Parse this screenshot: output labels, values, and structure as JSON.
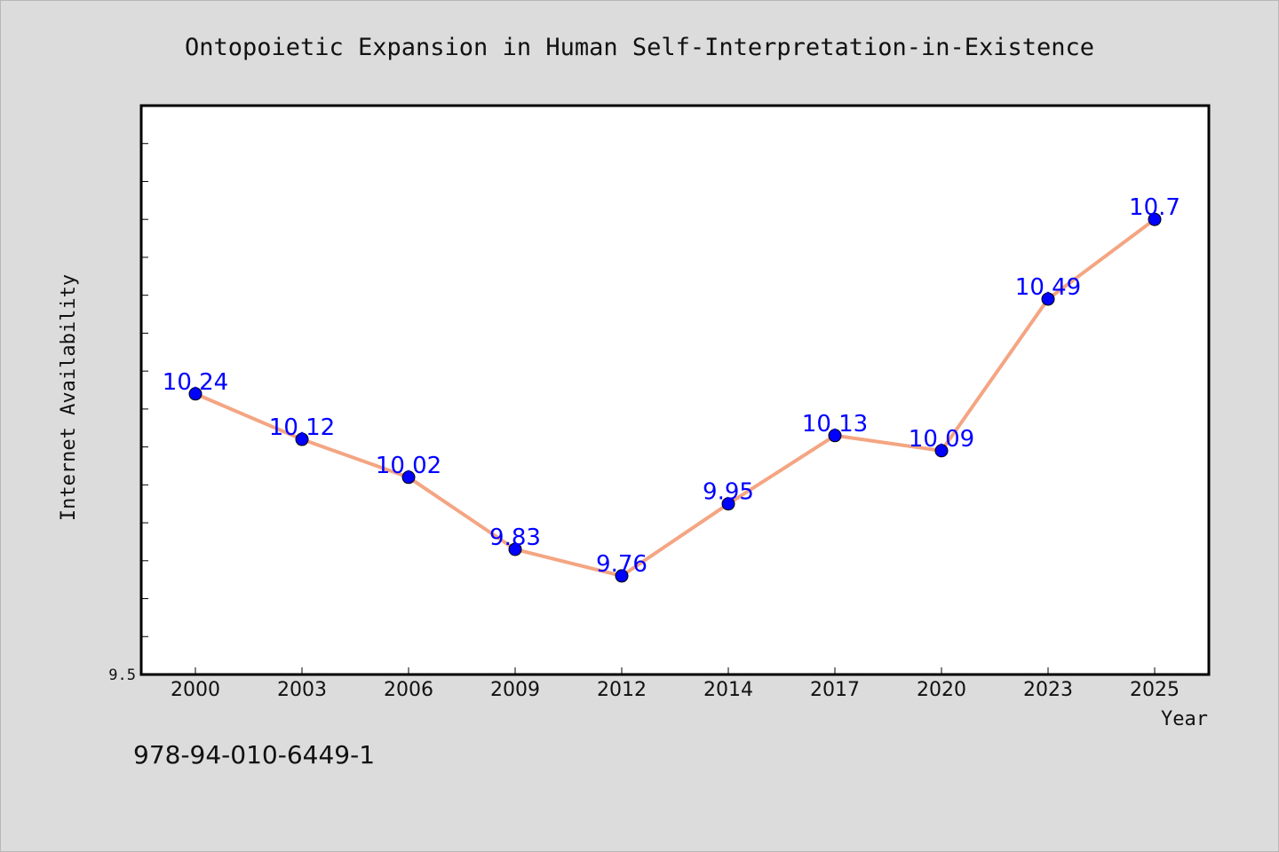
{
  "chart_data": {
    "type": "line",
    "title": "Ontopoietic Expansion in Human Self-Interpretation-in-Existence",
    "xlabel": "Year",
    "ylabel": "Internet Availability",
    "categories": [
      "2000",
      "2003",
      "2006",
      "2009",
      "2012",
      "2014",
      "2017",
      "2020",
      "2023",
      "2025"
    ],
    "series": [
      {
        "values": [
          10.24,
          10.12,
          10.02,
          9.83,
          9.76,
          9.95,
          10.13,
          10.09,
          10.49,
          10.7
        ]
      }
    ],
    "data_labels": [
      "10.24",
      "10.12",
      "10.02",
      "9.83",
      "9.76",
      "9.95",
      "10.13",
      "10.09",
      "10.49",
      "10.7"
    ],
    "ylim": [
      9.5,
      11.0
    ],
    "ytick_step_minor": 0.1,
    "ytick_labels": [
      {
        "value": 9.5,
        "label": "9.5"
      }
    ],
    "grid": false,
    "line_color": "#f4a582",
    "marker_color": "#0000ff",
    "label_color": "#0000ff",
    "plot_background": "#ffffff",
    "figure_background": "#dcdcdc"
  },
  "footer": {
    "isbn": "978-94-010-6449-1"
  }
}
